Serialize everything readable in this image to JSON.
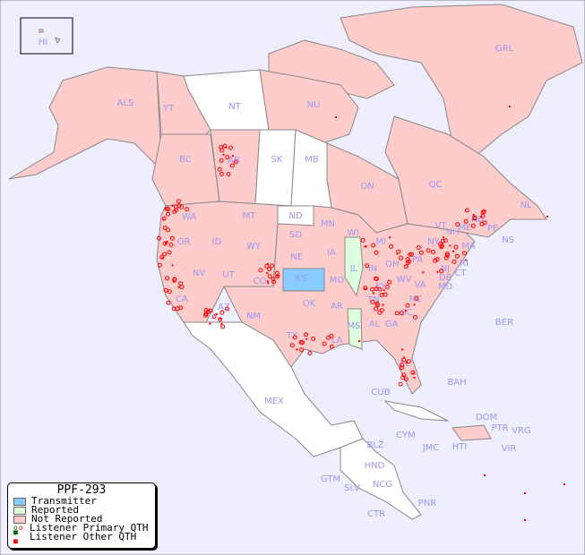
{
  "legend": {
    "title": "PPF-293",
    "items": [
      {
        "label": "Transmitter",
        "color": "#88ccff"
      },
      {
        "label": "Reported",
        "color": "#ddffdd"
      },
      {
        "label": "Not Reported",
        "color": "#ffcccc"
      },
      {
        "label": "Listener Primary QTH",
        "colors": [
          "#006600",
          "#ff0000"
        ]
      },
      {
        "label": "Listener Other QTH",
        "colors": [
          "#006600",
          "#ff0000"
        ]
      }
    ]
  },
  "colors": {
    "water": "#eeeeff",
    "not_reported": "#ffcccc",
    "unlisted": "#ffffff",
    "transmitter": "#88ccff",
    "reported": "#ddffdd",
    "marker": "#ff0000"
  },
  "regions": {
    "HI": "HI",
    "ALS": "ALS",
    "YT": "YT",
    "NT": "NT",
    "NU": "NU",
    "GRL": "GRL",
    "BC": "BC",
    "AB": "AB",
    "SK": "SK",
    "MB": "MB",
    "ON": "ON",
    "QC": "QC",
    "NL": "NL",
    "NS": "NS",
    "NB": "NB",
    "PE": "PE",
    "WA": "WA",
    "OR": "OR",
    "CA": "CA",
    "ID": "ID",
    "NV": "NV",
    "MT": "MT",
    "WY": "WY",
    "UT": "UT",
    "AZ": "AZ",
    "CO": "CO",
    "NM": "NM",
    "ND": "ND",
    "SD": "SD",
    "NE": "NE",
    "KS": "KS",
    "OK": "OK",
    "TX": "TX",
    "MN": "MN",
    "IA": "IA",
    "MO": "MO",
    "AR": "AR",
    "LA": "LA",
    "WI": "WI",
    "IL": "IL",
    "MS": "MS",
    "MI": "MI",
    "IN": "IN",
    "KY": "KY",
    "TN": "TN",
    "AL": "AL",
    "GA": "GA",
    "FL": "FL",
    "SC": "SC",
    "NC": "NC",
    "OH": "OH",
    "WV": "WV",
    "VA": "VA",
    "PA": "PA",
    "NY": "NY",
    "VT": "VT",
    "NH": "NH",
    "ME": "ME",
    "MA": "MA",
    "CT": "CT",
    "RI": "RI",
    "NJ": "NJ",
    "DE": "DE",
    "MD": "MD",
    "BER": "BER",
    "BAH": "BAH",
    "CUB": "CUB",
    "MEX": "MEX",
    "CYM": "CYM",
    "JMC": "JMC",
    "HTI": "HTI",
    "DOM": "DOM",
    "PTR": "PTR",
    "VRG": "VRG",
    "VIR": "VIR",
    "BLZ": "BLZ",
    "HND": "HND",
    "GTM": "GTM",
    "SLV": "SLV",
    "NCG": "NCG",
    "CTR": "CTR",
    "PNR": "PNR"
  }
}
